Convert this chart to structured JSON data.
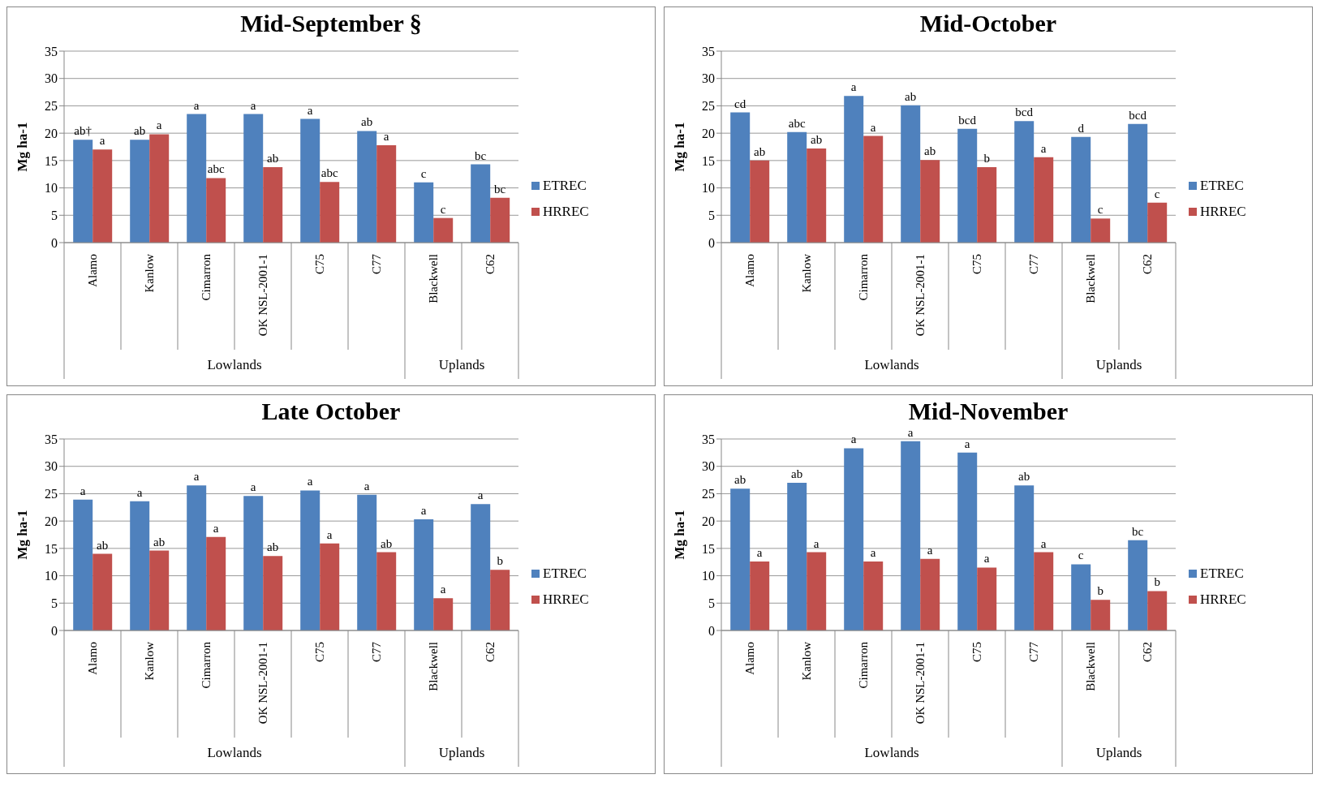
{
  "chart_data": [
    {
      "type": "bar",
      "title": "Mid-September §",
      "ylabel": "Mg ha-1",
      "categories": [
        "Alamo",
        "Kanlow",
        "Cimarron",
        "OK NSL-2001-1",
        "C75",
        "C77",
        "Blackwell",
        "C62"
      ],
      "ylim": [
        0,
        35
      ],
      "yticks": [
        0,
        5,
        10,
        15,
        20,
        25,
        30,
        35
      ],
      "grid": "y",
      "legend": "right",
      "annotations": [
        "Lowlands",
        "Uplands"
      ],
      "series": [
        {
          "name": "ETREC",
          "color": "#4f81bd",
          "values": [
            18.8,
            18.8,
            23.5,
            23.5,
            22.6,
            20.4,
            11.0,
            14.3
          ],
          "value_labels": [
            "ab†",
            "ab",
            "a",
            "a",
            "a",
            "ab",
            "c",
            "bc"
          ]
        },
        {
          "name": "HRREC",
          "color": "#c0504d",
          "values": [
            17.0,
            19.8,
            11.8,
            13.8,
            11.1,
            17.8,
            4.5,
            8.2
          ],
          "value_labels": [
            "a",
            "a",
            "abc",
            "ab",
            "abc",
            "a",
            "c",
            "bc"
          ]
        }
      ]
    },
    {
      "type": "bar",
      "title": "Mid-October",
      "ylabel": "Mg ha-1",
      "categories": [
        "Alamo",
        "Kanlow",
        "Cimarron",
        "OK NSL-2001-1",
        "C75",
        "C77",
        "Blackwell",
        "C62"
      ],
      "ylim": [
        0,
        35
      ],
      "yticks": [
        0,
        5,
        10,
        15,
        20,
        25,
        30,
        35
      ],
      "grid": "y",
      "legend": "right",
      "annotations": [
        "Lowlands",
        "Uplands"
      ],
      "series": [
        {
          "name": "ETREC",
          "color": "#4f81bd",
          "values": [
            23.8,
            20.2,
            26.8,
            25.1,
            20.8,
            22.2,
            19.3,
            21.7
          ],
          "value_labels": [
            "cd",
            "abc",
            "a",
            "ab",
            "bcd",
            "bcd",
            "d",
            "bcd"
          ]
        },
        {
          "name": "HRREC",
          "color": "#c0504d",
          "values": [
            15.0,
            17.2,
            19.5,
            15.1,
            13.8,
            15.6,
            4.4,
            7.3
          ],
          "value_labels": [
            "ab",
            "ab",
            "a",
            "ab",
            "b",
            "a",
            "c",
            "c"
          ]
        }
      ]
    },
    {
      "type": "bar",
      "title": "Late October",
      "ylabel": "Mg ha-1",
      "categories": [
        "Alamo",
        "Kanlow",
        "Cimarron",
        "OK NSL-2001-1",
        "C75",
        "C77",
        "Blackwell",
        "C62"
      ],
      "ylim": [
        0,
        35
      ],
      "yticks": [
        0,
        5,
        10,
        15,
        20,
        25,
        30,
        35
      ],
      "grid": "y",
      "legend": "right",
      "annotations": [
        "Lowlands",
        "Uplands"
      ],
      "series": [
        {
          "name": "ETREC",
          "color": "#4f81bd",
          "values": [
            23.9,
            23.6,
            26.5,
            24.6,
            25.6,
            24.8,
            20.3,
            23.1
          ],
          "value_labels": [
            "a",
            "a",
            "a",
            "a",
            "a",
            "a",
            "a",
            "a"
          ]
        },
        {
          "name": "HRREC",
          "color": "#c0504d",
          "values": [
            14.0,
            14.6,
            17.1,
            13.6,
            15.9,
            14.3,
            5.9,
            11.1
          ],
          "value_labels": [
            "ab",
            "ab",
            "a",
            "ab",
            "a",
            "ab",
            "a",
            "b"
          ]
        }
      ]
    },
    {
      "type": "bar",
      "title": "Mid-November",
      "ylabel": "Mg ha-1",
      "categories": [
        "Alamo",
        "Kanlow",
        "Cimarron",
        "OK NSL-2001-1",
        "C75",
        "C77",
        "Blackwell",
        "C62"
      ],
      "ylim": [
        0,
        35
      ],
      "yticks": [
        0,
        5,
        10,
        15,
        20,
        25,
        30,
        35
      ],
      "grid": "y",
      "legend": "right",
      "annotations": [
        "Lowlands",
        "Uplands"
      ],
      "series": [
        {
          "name": "ETREC",
          "color": "#4f81bd",
          "values": [
            25.9,
            27.0,
            33.3,
            34.6,
            32.5,
            26.5,
            12.1,
            16.5
          ],
          "value_labels": [
            "ab",
            "ab",
            "a",
            "a",
            "a",
            "ab",
            "c",
            "bc"
          ]
        },
        {
          "name": "HRREC",
          "color": "#c0504d",
          "values": [
            12.6,
            14.3,
            12.6,
            13.1,
            11.5,
            14.3,
            5.6,
            7.2
          ],
          "value_labels": [
            "a",
            "a",
            "a",
            "a",
            "a",
            "a",
            "b",
            "b"
          ]
        }
      ]
    }
  ]
}
